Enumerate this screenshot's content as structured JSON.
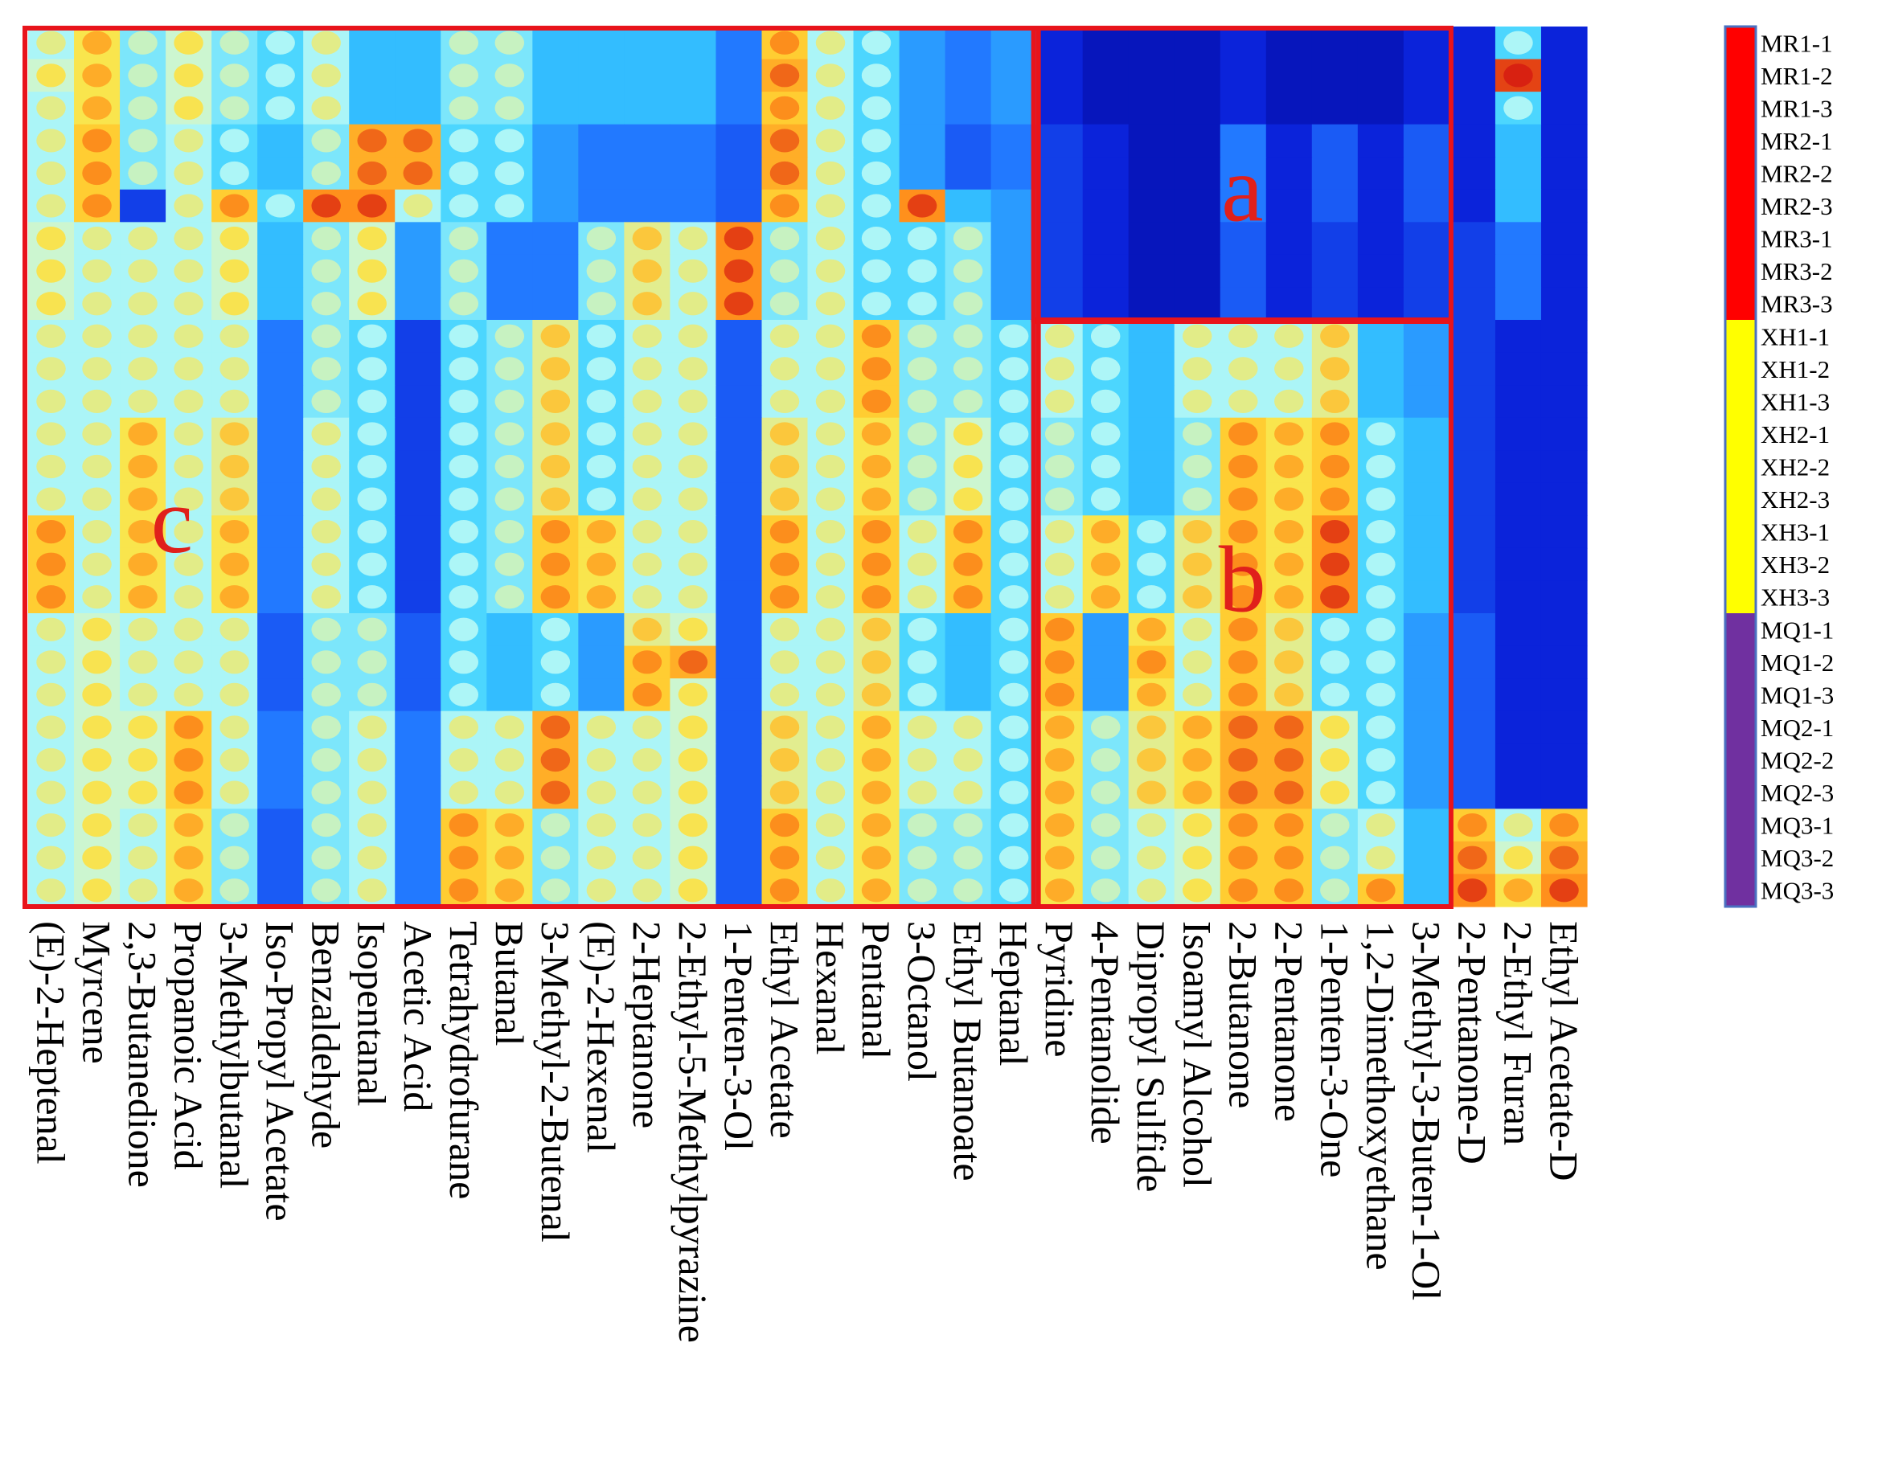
{
  "chart_data": {
    "type": "heatmap",
    "title": "",
    "colormap": [
      "#00007a",
      "#0a1fd8",
      "#1f6fff",
      "#38d0ff",
      "#bffbf6",
      "#ffe23a",
      "#ff8c1a",
      "#d61b10"
    ],
    "value_range": [
      0,
      1
    ],
    "columns": [
      "(E)-2-Heptenal",
      "Myrcene",
      "2,3-Butanedione",
      "Propanoic Acid",
      "3-Methylbutanal",
      "Iso-Propyl Acetate",
      "Benzaldehyde",
      "Isopentanal",
      "Acetic Acid",
      "Tetrahydrofurane",
      "Butanal",
      "3-Methyl-2-Butenal",
      "(E)-2-Hexenal",
      "2-Heptanone",
      "2-Ethyl-5-Methylpyrazine",
      "1-Penten-3-Ol",
      "Ethyl Acetate",
      "Hexanal",
      "Pentanal",
      "3-Octanol",
      "Ethyl Butanoate",
      "Heptanal",
      "Pyridine",
      "4-Pentanolide",
      "Dipropyl Sulfide",
      "Isoamyl Alcohol",
      "2-Butanone",
      "2-Pentanone",
      "1-Penten-3-One",
      "1,2-Dimethoxyethane",
      "3-Methyl-3-Buten-1-Ol",
      "2-Pentanone-D",
      "2-Ethyl Furan",
      "Ethyl Acetate-D"
    ],
    "rows": [
      "MR1-1",
      "MR1-2",
      "MR1-3",
      "MR2-1",
      "MR2-2",
      "MR2-3",
      "MR3-1",
      "MR3-2",
      "MR3-3",
      "XH1-1",
      "XH1-2",
      "XH1-3",
      "XH2-1",
      "XH2-2",
      "XH2-3",
      "XH3-1",
      "XH3-2",
      "XH3-3",
      "MQ1-1",
      "MQ1-2",
      "MQ1-3",
      "MQ2-1",
      "MQ2-2",
      "MQ2-3",
      "MQ3-1",
      "MQ3-2",
      "MQ3-3"
    ],
    "groups": [
      {
        "name": "MR",
        "color": "#ff0000",
        "rows": [
          "MR1-1",
          "MR1-2",
          "MR1-3",
          "MR2-1",
          "MR2-2",
          "MR2-3",
          "MR3-1",
          "MR3-2",
          "MR3-3"
        ]
      },
      {
        "name": "XH",
        "color": "#ffff00",
        "rows": [
          "XH1-1",
          "XH1-2",
          "XH1-3",
          "XH2-1",
          "XH2-2",
          "XH2-3",
          "XH3-1",
          "XH3-2",
          "XH3-3"
        ]
      },
      {
        "name": "MQ",
        "color": "#7030a0",
        "rows": [
          "MQ1-1",
          "MQ1-2",
          "MQ1-3",
          "MQ2-1",
          "MQ2-2",
          "MQ2-3",
          "MQ3-1",
          "MQ3-2",
          "MQ3-3"
        ]
      }
    ],
    "regions": [
      {
        "label": "c",
        "columns": [
          "(E)-2-Heptenal",
          "Heptanal"
        ],
        "rows": [
          "MR1-1",
          "MQ3-3"
        ]
      },
      {
        "label": "a",
        "columns": [
          "Pyridine",
          "3-Methyl-3-Buten-1-Ol"
        ],
        "rows": [
          "MR1-1",
          "MR3-3"
        ]
      },
      {
        "label": "b",
        "columns": [
          "Pyridine",
          "3-Methyl-3-Buten-1-Ol"
        ],
        "rows": [
          "XH1-1",
          "MQ3-3"
        ]
      }
    ],
    "values": [
      [
        0.55,
        0.7,
        0.5,
        0.6,
        0.5,
        0.45,
        0.55,
        0.4,
        0.4,
        0.5,
        0.5,
        0.4,
        0.4,
        0.4,
        0.4,
        0.3,
        0.75,
        0.55,
        0.45,
        0.35,
        0.3,
        0.35,
        0.15,
        0.1,
        0.1,
        0.1,
        0.15,
        0.1,
        0.1,
        0.1,
        0.15,
        0.15,
        0.45,
        0.15
      ],
      [
        0.6,
        0.7,
        0.5,
        0.6,
        0.5,
        0.45,
        0.55,
        0.4,
        0.4,
        0.5,
        0.5,
        0.4,
        0.4,
        0.4,
        0.4,
        0.3,
        0.8,
        0.55,
        0.45,
        0.35,
        0.3,
        0.35,
        0.15,
        0.1,
        0.1,
        0.1,
        0.15,
        0.1,
        0.1,
        0.1,
        0.15,
        0.15,
        0.95,
        0.15
      ],
      [
        0.55,
        0.7,
        0.5,
        0.6,
        0.5,
        0.45,
        0.55,
        0.4,
        0.4,
        0.5,
        0.5,
        0.4,
        0.4,
        0.4,
        0.4,
        0.3,
        0.75,
        0.55,
        0.45,
        0.35,
        0.3,
        0.35,
        0.15,
        0.1,
        0.1,
        0.1,
        0.15,
        0.1,
        0.1,
        0.1,
        0.15,
        0.15,
        0.45,
        0.15
      ],
      [
        0.55,
        0.75,
        0.5,
        0.55,
        0.45,
        0.4,
        0.5,
        0.8,
        0.8,
        0.45,
        0.45,
        0.35,
        0.3,
        0.3,
        0.3,
        0.25,
        0.8,
        0.55,
        0.45,
        0.35,
        0.25,
        0.3,
        0.2,
        0.15,
        0.1,
        0.1,
        0.3,
        0.15,
        0.25,
        0.15,
        0.25,
        0.15,
        0.4,
        0.15
      ],
      [
        0.55,
        0.75,
        0.5,
        0.55,
        0.45,
        0.4,
        0.5,
        0.8,
        0.8,
        0.45,
        0.45,
        0.35,
        0.3,
        0.3,
        0.3,
        0.25,
        0.8,
        0.55,
        0.45,
        0.35,
        0.25,
        0.3,
        0.2,
        0.15,
        0.1,
        0.1,
        0.3,
        0.15,
        0.25,
        0.15,
        0.25,
        0.15,
        0.4,
        0.15
      ],
      [
        0.55,
        0.75,
        0.2,
        0.55,
        0.75,
        0.45,
        0.85,
        0.85,
        0.55,
        0.45,
        0.45,
        0.35,
        0.3,
        0.3,
        0.3,
        0.25,
        0.75,
        0.55,
        0.45,
        0.85,
        0.4,
        0.35,
        0.2,
        0.15,
        0.1,
        0.1,
        0.3,
        0.15,
        0.25,
        0.15,
        0.25,
        0.15,
        0.4,
        0.15
      ],
      [
        0.6,
        0.55,
        0.55,
        0.55,
        0.6,
        0.4,
        0.5,
        0.6,
        0.35,
        0.5,
        0.3,
        0.3,
        0.5,
        0.65,
        0.55,
        0.85,
        0.5,
        0.55,
        0.45,
        0.45,
        0.5,
        0.35,
        0.2,
        0.15,
        0.1,
        0.1,
        0.25,
        0.15,
        0.2,
        0.15,
        0.2,
        0.2,
        0.3,
        0.15
      ],
      [
        0.6,
        0.55,
        0.55,
        0.55,
        0.6,
        0.4,
        0.5,
        0.6,
        0.35,
        0.5,
        0.3,
        0.3,
        0.5,
        0.65,
        0.55,
        0.85,
        0.5,
        0.55,
        0.45,
        0.45,
        0.5,
        0.35,
        0.2,
        0.15,
        0.1,
        0.1,
        0.25,
        0.15,
        0.2,
        0.15,
        0.2,
        0.2,
        0.3,
        0.15
      ],
      [
        0.6,
        0.55,
        0.55,
        0.55,
        0.6,
        0.4,
        0.5,
        0.6,
        0.35,
        0.5,
        0.3,
        0.3,
        0.5,
        0.65,
        0.55,
        0.85,
        0.5,
        0.55,
        0.45,
        0.45,
        0.5,
        0.35,
        0.2,
        0.15,
        0.1,
        0.1,
        0.25,
        0.15,
        0.2,
        0.15,
        0.2,
        0.2,
        0.3,
        0.15
      ],
      [
        0.55,
        0.55,
        0.55,
        0.55,
        0.55,
        0.3,
        0.5,
        0.45,
        0.2,
        0.45,
        0.5,
        0.65,
        0.45,
        0.55,
        0.55,
        0.25,
        0.55,
        0.55,
        0.75,
        0.5,
        0.5,
        0.45,
        0.55,
        0.45,
        0.4,
        0.55,
        0.55,
        0.55,
        0.65,
        0.4,
        0.35,
        0.2,
        0.15,
        0.15
      ],
      [
        0.55,
        0.55,
        0.55,
        0.55,
        0.55,
        0.3,
        0.5,
        0.45,
        0.2,
        0.45,
        0.5,
        0.65,
        0.45,
        0.55,
        0.55,
        0.25,
        0.55,
        0.55,
        0.75,
        0.5,
        0.5,
        0.45,
        0.55,
        0.45,
        0.4,
        0.55,
        0.55,
        0.55,
        0.65,
        0.4,
        0.35,
        0.2,
        0.15,
        0.15
      ],
      [
        0.55,
        0.55,
        0.55,
        0.55,
        0.55,
        0.3,
        0.5,
        0.45,
        0.2,
        0.45,
        0.5,
        0.65,
        0.45,
        0.55,
        0.55,
        0.25,
        0.55,
        0.55,
        0.75,
        0.5,
        0.5,
        0.45,
        0.55,
        0.45,
        0.4,
        0.55,
        0.55,
        0.55,
        0.65,
        0.4,
        0.35,
        0.2,
        0.15,
        0.15
      ],
      [
        0.55,
        0.55,
        0.7,
        0.55,
        0.65,
        0.3,
        0.55,
        0.45,
        0.2,
        0.45,
        0.5,
        0.65,
        0.45,
        0.55,
        0.55,
        0.25,
        0.65,
        0.55,
        0.7,
        0.5,
        0.6,
        0.45,
        0.5,
        0.45,
        0.4,
        0.5,
        0.75,
        0.7,
        0.75,
        0.45,
        0.4,
        0.2,
        0.15,
        0.15
      ],
      [
        0.55,
        0.55,
        0.7,
        0.55,
        0.65,
        0.3,
        0.55,
        0.45,
        0.2,
        0.45,
        0.5,
        0.65,
        0.45,
        0.55,
        0.55,
        0.25,
        0.65,
        0.55,
        0.7,
        0.5,
        0.6,
        0.45,
        0.5,
        0.45,
        0.4,
        0.5,
        0.75,
        0.7,
        0.75,
        0.45,
        0.4,
        0.2,
        0.15,
        0.15
      ],
      [
        0.55,
        0.55,
        0.7,
        0.55,
        0.65,
        0.3,
        0.55,
        0.45,
        0.2,
        0.45,
        0.5,
        0.65,
        0.45,
        0.55,
        0.55,
        0.25,
        0.65,
        0.55,
        0.7,
        0.5,
        0.6,
        0.45,
        0.5,
        0.45,
        0.4,
        0.5,
        0.75,
        0.7,
        0.75,
        0.45,
        0.4,
        0.2,
        0.15,
        0.15
      ],
      [
        0.75,
        0.55,
        0.7,
        0.55,
        0.7,
        0.3,
        0.55,
        0.45,
        0.2,
        0.45,
        0.5,
        0.75,
        0.7,
        0.55,
        0.55,
        0.25,
        0.75,
        0.55,
        0.75,
        0.55,
        0.75,
        0.45,
        0.55,
        0.7,
        0.45,
        0.65,
        0.75,
        0.7,
        0.85,
        0.45,
        0.4,
        0.2,
        0.15,
        0.15
      ],
      [
        0.75,
        0.55,
        0.7,
        0.55,
        0.7,
        0.3,
        0.55,
        0.45,
        0.2,
        0.45,
        0.5,
        0.75,
        0.7,
        0.55,
        0.55,
        0.25,
        0.75,
        0.55,
        0.75,
        0.55,
        0.75,
        0.45,
        0.55,
        0.7,
        0.45,
        0.65,
        0.75,
        0.7,
        0.85,
        0.45,
        0.4,
        0.2,
        0.15,
        0.15
      ],
      [
        0.75,
        0.55,
        0.7,
        0.55,
        0.7,
        0.3,
        0.55,
        0.45,
        0.2,
        0.45,
        0.5,
        0.75,
        0.7,
        0.55,
        0.55,
        0.25,
        0.75,
        0.55,
        0.75,
        0.55,
        0.75,
        0.45,
        0.55,
        0.7,
        0.45,
        0.65,
        0.75,
        0.7,
        0.85,
        0.45,
        0.4,
        0.2,
        0.15,
        0.15
      ],
      [
        0.55,
        0.6,
        0.55,
        0.55,
        0.55,
        0.25,
        0.5,
        0.5,
        0.25,
        0.45,
        0.4,
        0.45,
        0.35,
        0.65,
        0.6,
        0.25,
        0.55,
        0.55,
        0.65,
        0.45,
        0.4,
        0.45,
        0.75,
        0.35,
        0.7,
        0.55,
        0.75,
        0.65,
        0.45,
        0.45,
        0.35,
        0.25,
        0.15,
        0.15
      ],
      [
        0.55,
        0.6,
        0.55,
        0.55,
        0.55,
        0.25,
        0.5,
        0.5,
        0.25,
        0.45,
        0.4,
        0.45,
        0.35,
        0.75,
        0.8,
        0.25,
        0.55,
        0.55,
        0.65,
        0.45,
        0.4,
        0.45,
        0.75,
        0.35,
        0.75,
        0.55,
        0.75,
        0.65,
        0.45,
        0.45,
        0.35,
        0.25,
        0.15,
        0.15
      ],
      [
        0.55,
        0.6,
        0.55,
        0.55,
        0.55,
        0.25,
        0.5,
        0.5,
        0.25,
        0.45,
        0.4,
        0.45,
        0.35,
        0.75,
        0.6,
        0.25,
        0.55,
        0.55,
        0.65,
        0.45,
        0.4,
        0.45,
        0.75,
        0.35,
        0.7,
        0.55,
        0.75,
        0.65,
        0.45,
        0.45,
        0.35,
        0.25,
        0.15,
        0.15
      ],
      [
        0.55,
        0.6,
        0.6,
        0.75,
        0.55,
        0.3,
        0.5,
        0.55,
        0.3,
        0.55,
        0.55,
        0.8,
        0.55,
        0.55,
        0.6,
        0.25,
        0.65,
        0.55,
        0.7,
        0.55,
        0.55,
        0.45,
        0.7,
        0.5,
        0.65,
        0.7,
        0.8,
        0.8,
        0.6,
        0.45,
        0.35,
        0.25,
        0.15,
        0.15
      ],
      [
        0.55,
        0.6,
        0.6,
        0.75,
        0.55,
        0.3,
        0.5,
        0.55,
        0.3,
        0.55,
        0.55,
        0.8,
        0.55,
        0.55,
        0.6,
        0.25,
        0.65,
        0.55,
        0.7,
        0.55,
        0.55,
        0.45,
        0.7,
        0.5,
        0.65,
        0.7,
        0.8,
        0.8,
        0.6,
        0.45,
        0.35,
        0.25,
        0.15,
        0.15
      ],
      [
        0.55,
        0.6,
        0.6,
        0.75,
        0.55,
        0.3,
        0.5,
        0.55,
        0.3,
        0.55,
        0.55,
        0.8,
        0.55,
        0.55,
        0.6,
        0.25,
        0.65,
        0.55,
        0.7,
        0.55,
        0.55,
        0.45,
        0.7,
        0.5,
        0.65,
        0.7,
        0.8,
        0.8,
        0.6,
        0.45,
        0.35,
        0.25,
        0.15,
        0.15
      ],
      [
        0.55,
        0.6,
        0.55,
        0.7,
        0.5,
        0.25,
        0.5,
        0.55,
        0.3,
        0.75,
        0.7,
        0.5,
        0.55,
        0.55,
        0.6,
        0.25,
        0.75,
        0.55,
        0.7,
        0.5,
        0.5,
        0.45,
        0.7,
        0.5,
        0.55,
        0.6,
        0.75,
        0.75,
        0.5,
        0.55,
        0.4,
        0.75,
        0.55,
        0.75
      ],
      [
        0.55,
        0.6,
        0.55,
        0.7,
        0.5,
        0.25,
        0.5,
        0.55,
        0.3,
        0.75,
        0.7,
        0.5,
        0.55,
        0.55,
        0.6,
        0.25,
        0.75,
        0.55,
        0.7,
        0.5,
        0.5,
        0.45,
        0.7,
        0.5,
        0.55,
        0.6,
        0.75,
        0.75,
        0.5,
        0.55,
        0.4,
        0.8,
        0.6,
        0.8
      ],
      [
        0.55,
        0.6,
        0.55,
        0.7,
        0.5,
        0.25,
        0.5,
        0.55,
        0.3,
        0.75,
        0.7,
        0.5,
        0.55,
        0.55,
        0.6,
        0.25,
        0.75,
        0.55,
        0.7,
        0.5,
        0.5,
        0.45,
        0.7,
        0.5,
        0.55,
        0.6,
        0.75,
        0.75,
        0.5,
        0.75,
        0.4,
        0.85,
        0.7,
        0.85
      ]
    ]
  }
}
